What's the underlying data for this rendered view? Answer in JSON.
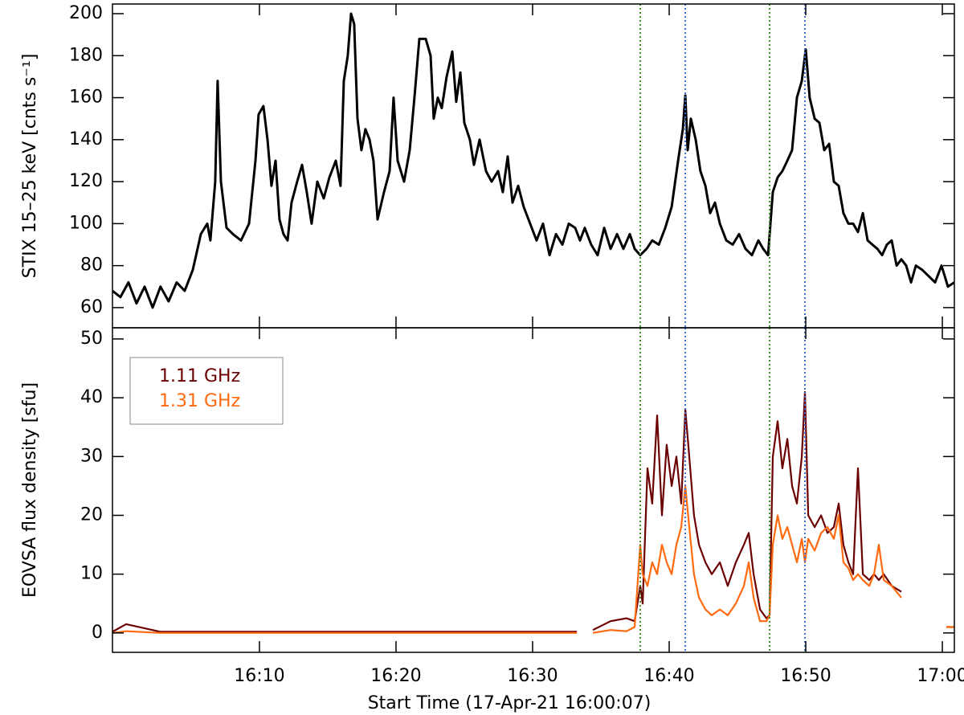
{
  "chart_data": [
    {
      "type": "line",
      "ylabel": "STIX 15–25 keV [cnts s⁻¹]",
      "xlim": [
        -0.76,
        60.88
      ],
      "ylim": [
        50.4,
        204.6
      ],
      "xticks": [
        10,
        20,
        30,
        40,
        50,
        60
      ],
      "show_xtick_labels": false,
      "yticks": [
        60,
        80,
        100,
        120,
        140,
        160,
        180,
        200
      ],
      "vlines": [
        {
          "value": 37.88,
          "color": "#3c8c28"
        },
        {
          "value": 41.18,
          "color": "#3a6fd8"
        },
        {
          "value": 47.35,
          "color": "#3c8c28"
        },
        {
          "value": 49.94,
          "color": "#3a6fd8"
        }
      ],
      "x": [
        -0.76,
        -0.18,
        0.41,
        1.0,
        1.59,
        2.18,
        2.76,
        3.35,
        3.94,
        4.53,
        5.12,
        5.71,
        6.18,
        6.41,
        6.76,
        6.94,
        7.18,
        7.59,
        8.06,
        8.65,
        9.24,
        9.71,
        9.94,
        10.29,
        10.59,
        10.88,
        11.18,
        11.47,
        11.76,
        12.06,
        12.35,
        12.76,
        13.12,
        13.47,
        13.82,
        14.24,
        14.71,
        15.12,
        15.59,
        15.94,
        16.18,
        16.47,
        16.71,
        16.94,
        17.18,
        17.47,
        17.76,
        18.06,
        18.35,
        18.65,
        19.12,
        19.53,
        19.82,
        20.12,
        20.59,
        21.0,
        21.35,
        21.71,
        22.18,
        22.53,
        22.76,
        23.06,
        23.35,
        23.71,
        24.12,
        24.41,
        24.71,
        25.0,
        25.41,
        25.71,
        26.12,
        26.59,
        27.0,
        27.47,
        27.82,
        28.18,
        28.53,
        28.94,
        29.35,
        29.82,
        30.29,
        30.76,
        31.24,
        31.71,
        32.18,
        32.65,
        33.12,
        33.47,
        33.82,
        34.29,
        34.76,
        35.24,
        35.71,
        36.18,
        36.65,
        37.12,
        37.47,
        37.88,
        38.35,
        38.76,
        39.24,
        39.71,
        40.18,
        40.65,
        41.0,
        41.18,
        41.35,
        41.59,
        41.94,
        42.29,
        42.65,
        43.0,
        43.35,
        43.71,
        44.18,
        44.65,
        45.12,
        45.59,
        46.06,
        46.53,
        46.88,
        47.24,
        47.59,
        47.94,
        48.29,
        48.65,
        49.0,
        49.35,
        49.71,
        50.0,
        50.29,
        50.65,
        51.0,
        51.35,
        51.71,
        52.06,
        52.41,
        52.76,
        53.12,
        53.47,
        53.82,
        54.18,
        54.53,
        54.88,
        55.24,
        55.59,
        55.94,
        56.29,
        56.65,
        57.0,
        57.35,
        57.71,
        58.06,
        58.53,
        59.0,
        59.47,
        59.94,
        60.41,
        60.88
      ],
      "series": [
        {
          "color": "#000000",
          "values": [
            68,
            65,
            72,
            62,
            70,
            60,
            70,
            63,
            72,
            68,
            78,
            95,
            100,
            92,
            120,
            168,
            120,
            98,
            95,
            92,
            100,
            130,
            152,
            156,
            140,
            118,
            130,
            102,
            95,
            92,
            110,
            120,
            128,
            115,
            100,
            120,
            112,
            122,
            130,
            118,
            168,
            180,
            200,
            195,
            150,
            135,
            145,
            140,
            130,
            102,
            115,
            125,
            160,
            130,
            120,
            135,
            160,
            188,
            188,
            180,
            150,
            160,
            155,
            170,
            182,
            158,
            172,
            148,
            140,
            128,
            140,
            125,
            120,
            125,
            115,
            132,
            110,
            118,
            108,
            100,
            92,
            100,
            85,
            95,
            90,
            100,
            98,
            92,
            98,
            90,
            85,
            98,
            88,
            95,
            88,
            95,
            88,
            85,
            88,
            92,
            90,
            98,
            108,
            130,
            145,
            161,
            135,
            150,
            140,
            125,
            118,
            105,
            110,
            100,
            92,
            90,
            95,
            88,
            85,
            92,
            88,
            85,
            115,
            122,
            125,
            130,
            135,
            160,
            168,
            183,
            160,
            150,
            148,
            135,
            138,
            120,
            118,
            105,
            100,
            100,
            96,
            105,
            92,
            90,
            88,
            85,
            90,
            92,
            80,
            83,
            80,
            72,
            80,
            78,
            75,
            72,
            80,
            70,
            72
          ]
        }
      ]
    },
    {
      "type": "line",
      "xlabel": "Start Time (17-Apr-21 16:00:07)",
      "ylabel": "EOVSA flux density [sfu]",
      "xlim": [
        -0.76,
        60.88
      ],
      "ylim": [
        -3.3,
        51.9
      ],
      "xticks": [
        {
          "value": 10,
          "label": "16:10"
        },
        {
          "value": 20,
          "label": "16:20"
        },
        {
          "value": 30,
          "label": "16:30"
        },
        {
          "value": 40,
          "label": "16:40"
        },
        {
          "value": 50,
          "label": "16:50"
        },
        {
          "value": 60,
          "label": "17:00"
        }
      ],
      "show_xtick_labels": true,
      "yticks": [
        0,
        10,
        20,
        30,
        40,
        50
      ],
      "legend": "upper left",
      "vlines": [
        {
          "value": 37.88,
          "color": "#3c8c28"
        },
        {
          "value": 41.18,
          "color": "#3a6fd8"
        },
        {
          "value": 47.35,
          "color": "#3c8c28"
        },
        {
          "value": 49.94,
          "color": "#3a6fd8"
        }
      ],
      "x": [
        -0.76,
        0.24,
        2.76,
        14.53,
        26.29,
        33.24,
        33.82,
        34.41,
        35.71,
        36.88,
        37.47,
        37.88,
        38.06,
        38.41,
        38.76,
        39.12,
        39.47,
        39.82,
        40.18,
        40.53,
        40.88,
        41.18,
        41.47,
        41.82,
        42.18,
        42.65,
        43.12,
        43.71,
        44.29,
        44.88,
        45.47,
        45.82,
        46.18,
        46.65,
        47.12,
        47.35,
        47.59,
        47.94,
        48.29,
        48.65,
        49.0,
        49.35,
        49.71,
        49.94,
        50.18,
        50.65,
        51.12,
        51.59,
        52.06,
        52.41,
        52.76,
        53.12,
        53.47,
        53.82,
        54.18,
        54.65,
        55.0,
        55.35,
        55.71,
        56.29,
        57.0,
        57.35,
        60.29,
        60.88
      ],
      "series": [
        {
          "name": "1.11 GHz",
          "color": "#6b0000",
          "values": [
            0.2,
            1.5,
            0.2,
            0.2,
            0.2,
            0.2,
            null,
            0.5,
            2,
            2.5,
            2,
            8,
            5,
            28,
            22,
            37,
            20,
            32,
            25,
            30,
            22,
            38,
            30,
            20,
            15,
            12,
            10,
            12,
            8,
            12,
            15,
            17,
            10,
            4,
            2.5,
            3,
            30,
            36,
            28,
            33,
            25,
            22,
            30,
            41,
            20,
            18,
            20,
            17,
            18,
            22,
            15,
            12,
            10,
            28,
            10,
            9,
            10,
            9,
            10,
            8,
            7,
            null,
            1,
            1
          ]
        },
        {
          "name": "1.31 GHz",
          "color": "#ff6a10",
          "values": [
            0,
            0.3,
            0,
            0,
            0,
            0,
            null,
            0,
            0.5,
            0.3,
            1,
            15,
            10,
            8,
            12,
            10,
            15,
            12,
            10,
            15,
            18,
            25,
            18,
            10,
            6,
            4,
            3,
            4,
            3,
            5,
            8,
            12,
            6,
            2,
            2,
            3,
            15,
            20,
            16,
            18,
            15,
            12,
            16,
            12,
            16,
            14,
            17,
            18,
            16,
            20,
            12,
            11,
            9,
            10,
            9,
            8,
            10,
            15,
            9,
            8,
            6,
            null,
            1,
            1
          ]
        }
      ]
    }
  ]
}
